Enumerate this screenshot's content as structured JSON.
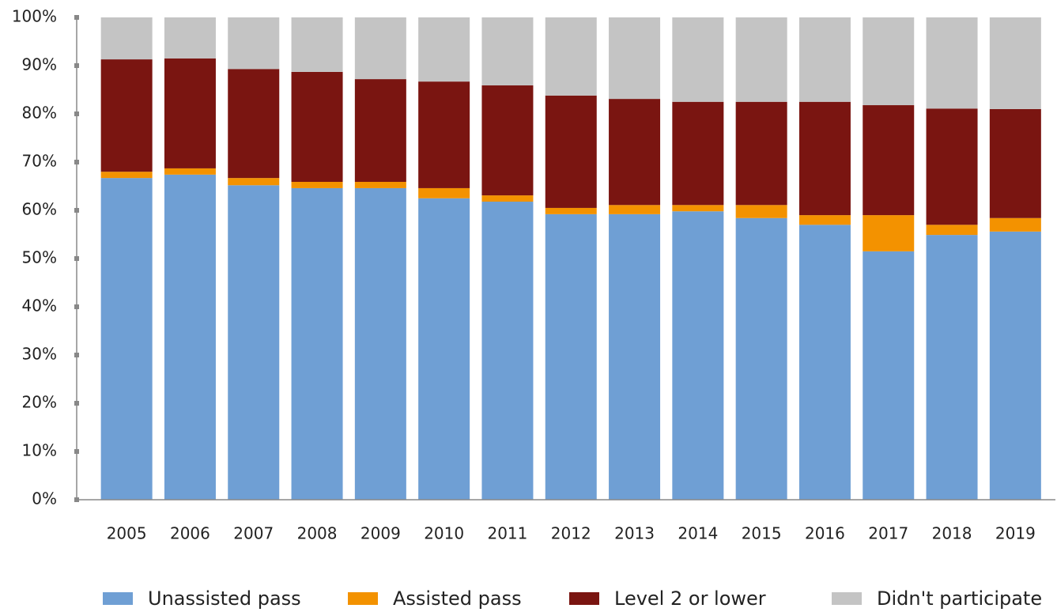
{
  "chart_data": {
    "type": "stacked_bar",
    "categories": [
      "2005",
      "2006",
      "2007",
      "2008",
      "2009",
      "2010",
      "2011",
      "2012",
      "2013",
      "2014",
      "2015",
      "2016",
      "2017",
      "2018",
      "2019"
    ],
    "series": [
      {
        "name": "Unassisted pass",
        "color": "#6f9fd4",
        "values": [
          66.7,
          67.4,
          65.2,
          64.6,
          64.6,
          62.5,
          61.8,
          59.2,
          59.2,
          59.8,
          58.4,
          57.0,
          51.5,
          54.9,
          55.6
        ]
      },
      {
        "name": "Assisted pass",
        "color": "#f39200",
        "values": [
          1.3,
          1.3,
          1.5,
          1.3,
          1.3,
          2.1,
          1.3,
          1.3,
          1.9,
          1.3,
          2.7,
          2.0,
          7.5,
          2.1,
          2.8
        ]
      },
      {
        "name": "Level 2 or lower",
        "color": "#7a1511",
        "values": [
          23.3,
          22.8,
          22.6,
          22.8,
          21.3,
          22.1,
          22.8,
          23.3,
          22.0,
          21.4,
          21.4,
          23.5,
          22.8,
          24.1,
          22.6
        ]
      },
      {
        "name": "Didn't participate",
        "color": "#c4c4c4",
        "values": [
          8.7,
          8.5,
          10.7,
          11.3,
          12.8,
          13.3,
          14.1,
          16.2,
          16.9,
          17.5,
          17.5,
          17.5,
          18.2,
          18.9,
          19.0
        ]
      }
    ],
    "ylim": [
      0,
      100
    ],
    "yticks": [
      {
        "value": 0,
        "label": "0%"
      },
      {
        "value": 10,
        "label": "10%"
      },
      {
        "value": 20,
        "label": "20%"
      },
      {
        "value": 30,
        "label": "30%"
      },
      {
        "value": 40,
        "label": "40%"
      },
      {
        "value": 50,
        "label": "50%"
      },
      {
        "value": 60,
        "label": "60%"
      },
      {
        "value": 70,
        "label": "70%"
      },
      {
        "value": 80,
        "label": "80%"
      },
      {
        "value": 90,
        "label": "90%"
      },
      {
        "value": 100,
        "label": "100%"
      }
    ],
    "legend": "bottom"
  }
}
